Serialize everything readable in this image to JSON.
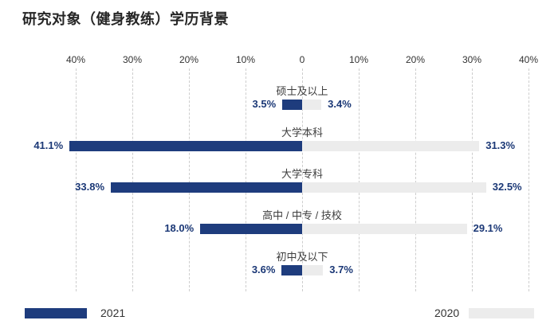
{
  "title": "研究对象（健身教练）学历背景",
  "legend": {
    "left_label": "2021",
    "right_label": "2020"
  },
  "colors": {
    "navy": "#1e3c7d",
    "light_gray": "#ececec",
    "value_text": "#1b3876",
    "grid": "#cdcdcd",
    "axis_text": "#333333",
    "category_text": "#3d3d3d",
    "title_text": "#262626"
  },
  "chart_data": {
    "type": "bar",
    "orientation": "diverging-horizontal",
    "title": "研究对象（健身教练）学历背景",
    "categories": [
      "硕士及以上",
      "大学本科",
      "大学专科",
      "高中 / 中专 / 技校",
      "初中及以下"
    ],
    "series": [
      {
        "name": "2021",
        "side": "left",
        "color": "#1e3c7d",
        "values": [
          3.5,
          41.1,
          33.8,
          18.0,
          3.6
        ]
      },
      {
        "name": "2020",
        "side": "right",
        "color": "#ececec",
        "values": [
          3.4,
          31.3,
          32.5,
          29.1,
          3.7
        ]
      }
    ],
    "value_labels": {
      "left": [
        "3.5%",
        "41.1%",
        "33.8%",
        "18.0%",
        "3.6%"
      ],
      "right": [
        "3.4%",
        "31.3%",
        "32.5%",
        "29.1%",
        "3.7%"
      ]
    },
    "axis": {
      "ticks": [
        "40%",
        "30%",
        "20%",
        "10%",
        "0",
        "10%",
        "20%",
        "30%",
        "40%"
      ],
      "tick_values": [
        -40,
        -30,
        -20,
        -10,
        0,
        10,
        20,
        30,
        40
      ],
      "max": 40,
      "gridlines": true,
      "legend_position": "bottom"
    }
  }
}
